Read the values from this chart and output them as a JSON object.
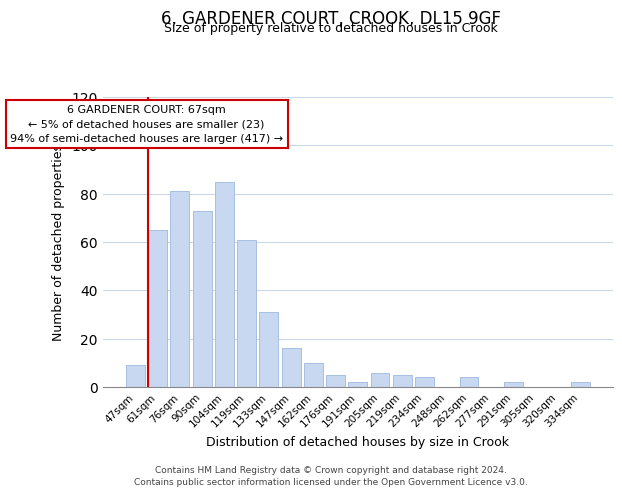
{
  "title": "6, GARDENER COURT, CROOK, DL15 9GF",
  "subtitle": "Size of property relative to detached houses in Crook",
  "xlabel": "Distribution of detached houses by size in Crook",
  "ylabel": "Number of detached properties",
  "bar_labels": [
    "47sqm",
    "61sqm",
    "76sqm",
    "90sqm",
    "104sqm",
    "119sqm",
    "133sqm",
    "147sqm",
    "162sqm",
    "176sqm",
    "191sqm",
    "205sqm",
    "219sqm",
    "234sqm",
    "248sqm",
    "262sqm",
    "277sqm",
    "291sqm",
    "305sqm",
    "320sqm",
    "334sqm"
  ],
  "bar_values": [
    9,
    65,
    81,
    73,
    85,
    61,
    31,
    16,
    10,
    5,
    2,
    6,
    5,
    4,
    0,
    4,
    0,
    2,
    0,
    0,
    2
  ],
  "bar_color": "#c8d8f0",
  "bar_edge_color": "#a8c0e0",
  "redline_index": 1,
  "ylim": [
    0,
    120
  ],
  "yticks": [
    0,
    20,
    40,
    60,
    80,
    100,
    120
  ],
  "annotation_title": "6 GARDENER COURT: 67sqm",
  "annotation_line1": "← 5% of detached houses are smaller (23)",
  "annotation_line2": "94% of semi-detached houses are larger (417) →",
  "redline_color": "#cc0000",
  "footer1": "Contains HM Land Registry data © Crown copyright and database right 2024.",
  "footer2": "Contains public sector information licensed under the Open Government Licence v3.0."
}
